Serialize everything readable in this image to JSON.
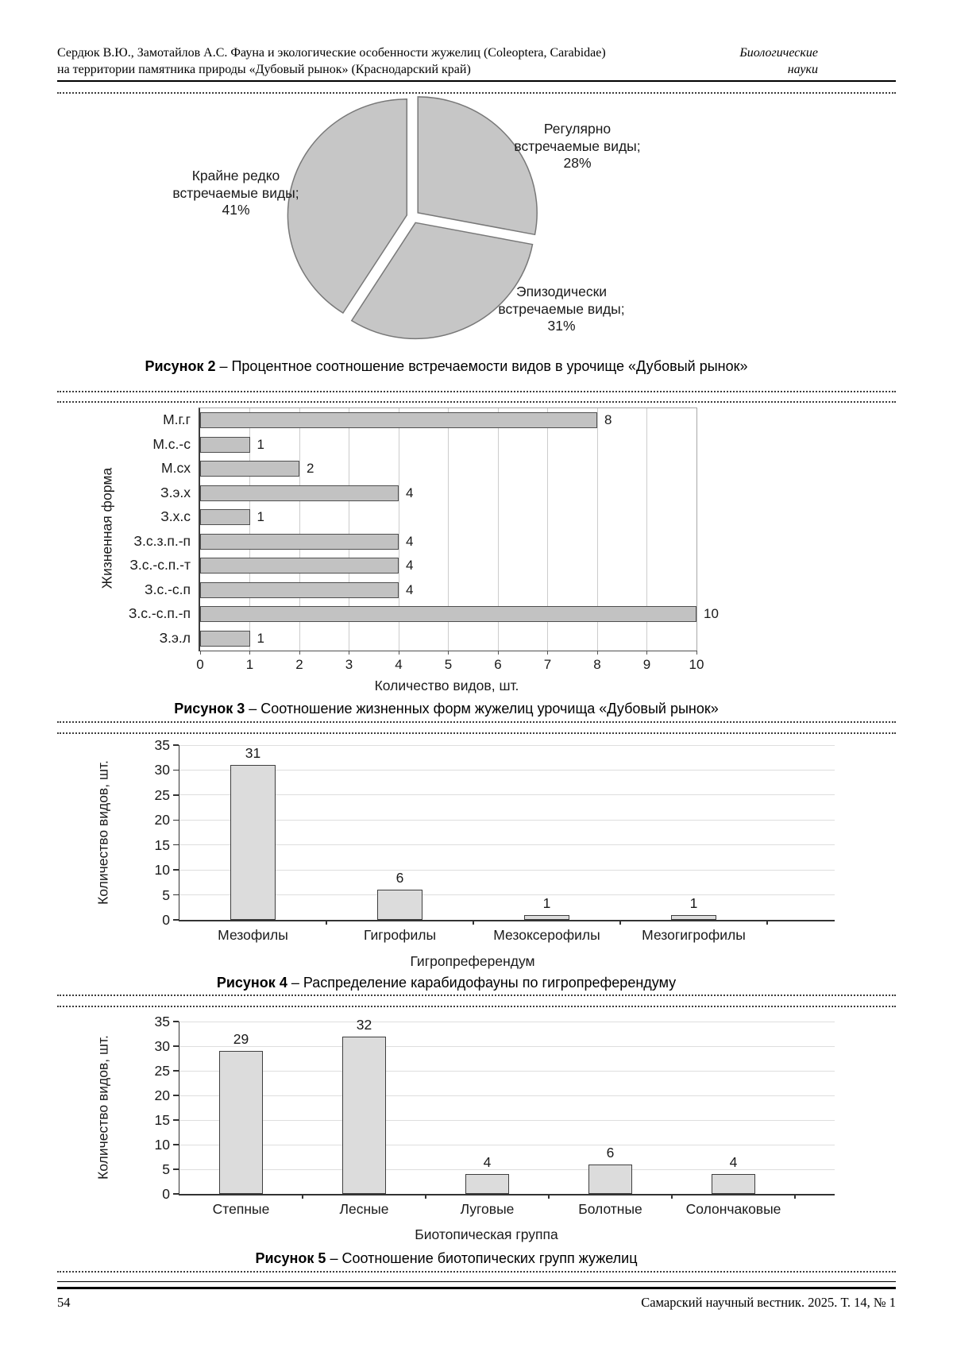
{
  "header": {
    "authors_title_line1": "Сердюк В.Ю., Замотайлов А.С. Фауна и экологические особенности жужелиц (Coleoptera, Carabidae)",
    "authors_title_line2": "на территории памятника природы «Дубовый рынок» (Краснодарский край)",
    "section_line1": "Биологические",
    "section_line2": "науки"
  },
  "figures": {
    "fig2": {
      "caption_label": "Рисунок 2",
      "caption_text": " – Процентное соотношение встречаемости видов в урочище «Дубовый рынок»"
    },
    "fig3": {
      "caption_label": "Рисунок 3",
      "caption_text": " – Соотношение жизненных форм жужелиц урочища «Дубовый рынок»"
    },
    "fig4": {
      "caption_label": "Рисунок 4",
      "caption_text": " – Распределение карабидофауны по гигропреферендуму"
    },
    "fig5": {
      "caption_label": "Рисунок 5",
      "caption_text": " – Соотношение биотопических групп жужелиц"
    }
  },
  "footer": {
    "page_number": "54",
    "journal_reference": "Самарский научный вестник. 2025. Т. 14, № 1"
  },
  "colors": {
    "pie_fill": "#c6c6c6",
    "pie_stroke": "#787878",
    "bar_fill_horizontal": "#c2c2c2",
    "bar_stroke_horizontal": "#4f4f4f",
    "bar_fill_vertical": "#dcdcdc",
    "bar_stroke_vertical": "#3f3f3f",
    "gridline": "#dedede",
    "axis": "#333333"
  },
  "chart_data": [
    {
      "type": "pie",
      "figure": "Рисунок 2",
      "title": "Процентное соотношение встречаемости видов в урочище «Дубовый рынок»",
      "start_angle_deg": -90,
      "direction": "clockwise",
      "exploded": true,
      "slices": [
        {
          "label": "Регулярно встречаемые виды",
          "pct": 28,
          "display_lines": [
            "Регулярно",
            "встречаемые виды;",
            "28%"
          ]
        },
        {
          "label": "Эпизодически встречаемые виды",
          "pct": 31,
          "display_lines": [
            "Эпизодически",
            "встречаемые виды;",
            "31%"
          ]
        },
        {
          "label": "Крайне редко встречаемые виды",
          "pct": 41,
          "display_lines": [
            "Крайне редко",
            "встречаемые виды;",
            "41%"
          ]
        }
      ]
    },
    {
      "type": "bar",
      "orientation": "horizontal",
      "figure": "Рисунок 3",
      "title": "Соотношение жизненных форм жужелиц урочища «Дубовый рынок»",
      "categories": [
        "М.г.г",
        "М.с.-с",
        "М.сх",
        "З.э.х",
        "З.х.с",
        "З.с.з.п.-п",
        "З.с.-с.п.-т",
        "З.с.-с.п",
        "З.с.-с.п.-п",
        "З.э.л"
      ],
      "values": [
        8,
        1,
        2,
        4,
        1,
        4,
        4,
        4,
        10,
        1
      ],
      "xlabel": "Количество видов, шт.",
      "ylabel": "Жизненная форма",
      "xlim": [
        0,
        10
      ],
      "xticks": [
        0,
        1,
        2,
        3,
        4,
        5,
        6,
        7,
        8,
        9,
        10
      ],
      "grid": "vertical",
      "value_labels": true
    },
    {
      "type": "bar",
      "orientation": "vertical",
      "figure": "Рисунок 4",
      "title": "Распределение карабидофауны по гигропреферендуму",
      "categories": [
        "Мезофилы",
        "Гигрофилы",
        "Мезоксерофилы",
        "Мезогигрофилы"
      ],
      "values": [
        31,
        6,
        1,
        1
      ],
      "xlabel": "Гигропреферендум",
      "ylabel": "Количество видов, шт.",
      "ylim": [
        0,
        35
      ],
      "yticks": [
        0,
        5,
        10,
        15,
        20,
        25,
        30,
        35
      ],
      "grid": "horizontal",
      "value_labels": true
    },
    {
      "type": "bar",
      "orientation": "vertical",
      "figure": "Рисунок 5",
      "title": "Соотношение биотопических групп жужелиц",
      "categories": [
        "Степные",
        "Лесные",
        "Луговые",
        "Болотные",
        "Солончаковые"
      ],
      "values": [
        29,
        32,
        4,
        6,
        4
      ],
      "xlabel": "Биотопическая группа",
      "ylabel": "Количество видов, шт.",
      "ylim": [
        0,
        35
      ],
      "yticks": [
        0,
        5,
        10,
        15,
        20,
        25,
        30,
        35
      ],
      "grid": "horizontal",
      "value_labels": true
    }
  ]
}
